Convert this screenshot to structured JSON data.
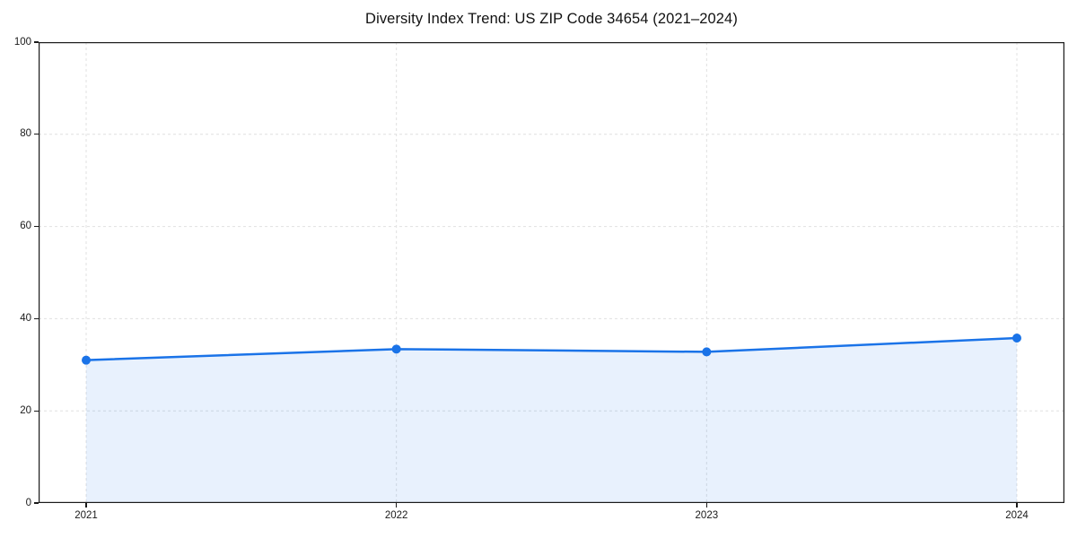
{
  "chart_data": {
    "type": "area",
    "title": "Diversity Index Trend: US ZIP Code 34654 (2021–2024)",
    "categories": [
      "2021",
      "2022",
      "2023",
      "2024"
    ],
    "series": [
      {
        "name": "Diversity Index",
        "values": [
          31.0,
          33.4,
          32.8,
          35.8
        ]
      }
    ],
    "xlabel": "",
    "ylabel": "",
    "ylim": [
      0,
      100
    ],
    "yticks": [
      0,
      20,
      40,
      60,
      80,
      100
    ],
    "grid": "dashed-both-axes",
    "legend_position": "none",
    "line_color": "#1a73e8",
    "marker_color": "#1a73e8",
    "fill_color": "rgba(26,115,232,0.10)",
    "grid_color": "#e0e0e0",
    "axis_color": "#1a1a1a",
    "background_color": "#ffffff"
  }
}
